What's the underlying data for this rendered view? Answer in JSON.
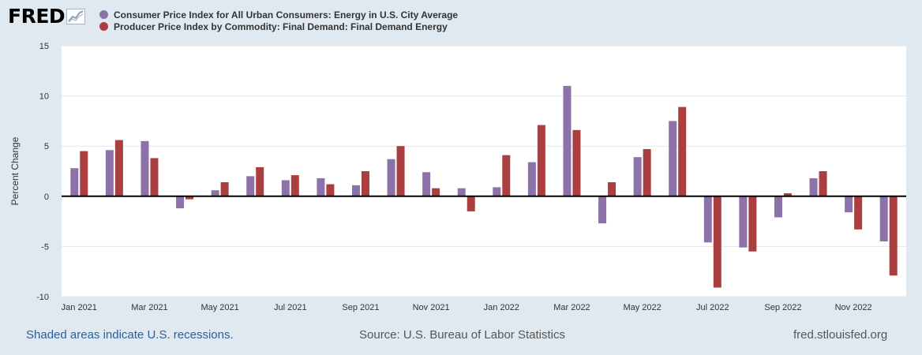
{
  "logo": {
    "text": "FRED"
  },
  "colors": {
    "series1": "#8c72a8",
    "series2": "#ab3e3e",
    "background": "#e1e9f0",
    "plot": "#ffffff"
  },
  "chart_data": {
    "type": "bar",
    "ylabel": "Percent Change",
    "ylim": [
      -10,
      15
    ],
    "yticks": [
      -10,
      -5,
      0,
      5,
      10,
      15
    ],
    "grid": true,
    "months": [
      "Jan 2021",
      "Feb 2021",
      "Mar 2021",
      "Apr 2021",
      "May 2021",
      "Jun 2021",
      "Jul 2021",
      "Aug 2021",
      "Sep 2021",
      "Oct 2021",
      "Nov 2021",
      "Dec 2021",
      "Jan 2022",
      "Feb 2022",
      "Mar 2022",
      "Apr 2022",
      "May 2022",
      "Jun 2022",
      "Jul 2022",
      "Aug 2022",
      "Sep 2022",
      "Oct 2022",
      "Nov 2022",
      "Dec 2022"
    ],
    "tick_labels": [
      "Jan 2021",
      "Mar 2021",
      "May 2021",
      "Jul 2021",
      "Sep 2021",
      "Nov 2021",
      "Jan 2022",
      "Mar 2022",
      "May 2022",
      "Jul 2022",
      "Sep 2022",
      "Nov 2022"
    ],
    "series": [
      {
        "name": "Consumer Price Index for All Urban Consumers: Energy in U.S. City Average",
        "values": [
          2.8,
          4.6,
          5.5,
          -1.2,
          0.6,
          2.0,
          1.6,
          1.8,
          1.1,
          3.7,
          2.4,
          0.8,
          0.9,
          3.4,
          11.0,
          -2.7,
          3.9,
          7.5,
          -4.6,
          -5.1,
          -2.1,
          1.8,
          -1.6,
          -4.5
        ]
      },
      {
        "name": "Producer Price Index by Commodity: Final Demand: Final Demand Energy",
        "values": [
          4.5,
          5.6,
          3.8,
          -0.3,
          1.4,
          2.9,
          2.1,
          1.2,
          2.5,
          5.0,
          0.8,
          -1.5,
          4.1,
          7.1,
          6.6,
          1.4,
          4.7,
          8.9,
          -9.1,
          -5.5,
          0.3,
          2.5,
          -3.3,
          -7.9
        ]
      }
    ]
  },
  "footer": {
    "recession_note": "Shaded areas indicate U.S. recessions.",
    "source": "Source: U.S. Bureau of Labor Statistics",
    "site": "fred.stlouisfed.org"
  }
}
